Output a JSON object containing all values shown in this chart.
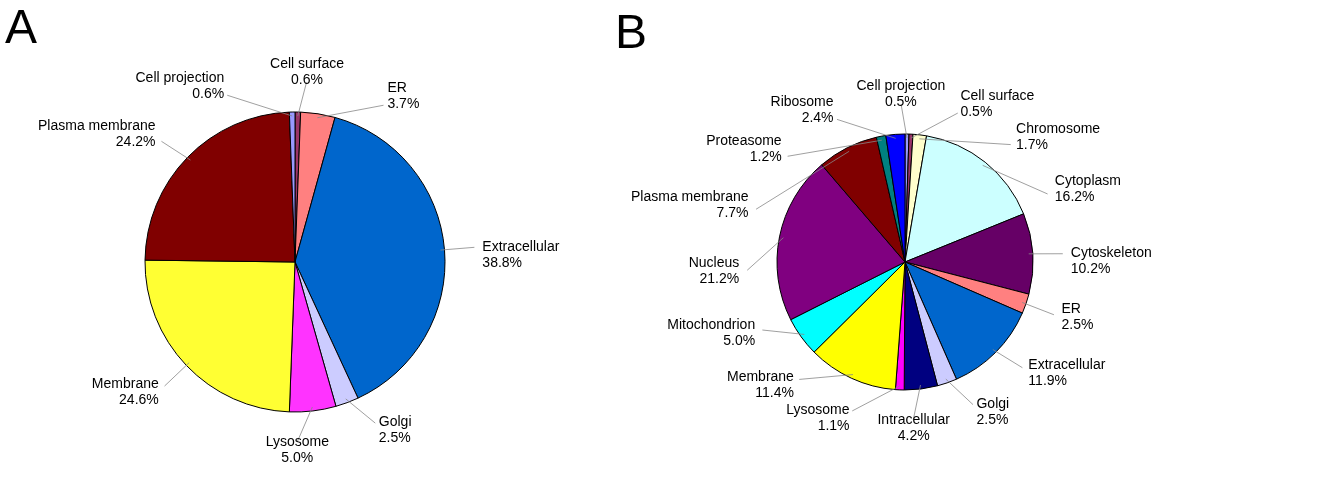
{
  "chart_data": [
    {
      "type": "pie",
      "title": "A",
      "categories": [
        "Cell surface",
        "ER",
        "Extracellular",
        "Golgi",
        "Lysosome",
        "Membrane",
        "Plasma membrane",
        "Cell projection"
      ],
      "values": [
        0.6,
        3.7,
        38.8,
        2.5,
        5.0,
        24.6,
        24.2,
        0.6
      ],
      "colors": [
        "#993366",
        "#ff8080",
        "#0066cc",
        "#ccccff",
        "#ff33ff",
        "#ffff33",
        "#800000",
        "#9999ff"
      ],
      "value_labels": [
        "0.6%",
        "3.7%",
        "38.8%",
        "2.5%",
        "5.0%",
        "24.6%",
        "24.2%",
        "0.6%"
      ]
    },
    {
      "type": "pie",
      "title": "B",
      "categories": [
        "Cell projection",
        "Cell surface",
        "Chromosome",
        "Cytoplasm",
        "Cytoskeleton",
        "ER",
        "Extracellular",
        "Golgi",
        "Intracellular",
        "Lysosome",
        "Membrane",
        "Mitochondrion",
        "Nucleus",
        "Plasma membrane",
        "Proteasome",
        "Ribosome"
      ],
      "values": [
        0.5,
        0.5,
        1.7,
        16.2,
        10.2,
        2.5,
        11.9,
        2.5,
        4.2,
        1.1,
        11.4,
        5.0,
        21.2,
        7.7,
        1.2,
        2.4
      ],
      "colors": [
        "#9999ff",
        "#993366",
        "#ffffcc",
        "#ccffff",
        "#660066",
        "#ff8080",
        "#0066cc",
        "#ccccff",
        "#000080",
        "#ff00ff",
        "#ffff00",
        "#00ffff",
        "#800080",
        "#800000",
        "#008080",
        "#0000ff"
      ],
      "value_labels": [
        "0.5%",
        "0.5%",
        "1.7%",
        "16.2%",
        "10.2%",
        "2.5%",
        "11.9%",
        "2.5%",
        "4.2%",
        "1.1%",
        "11.4%",
        "5.0%",
        "21.2%",
        "7.7%",
        "1.2%",
        "2.4%"
      ]
    }
  ]
}
